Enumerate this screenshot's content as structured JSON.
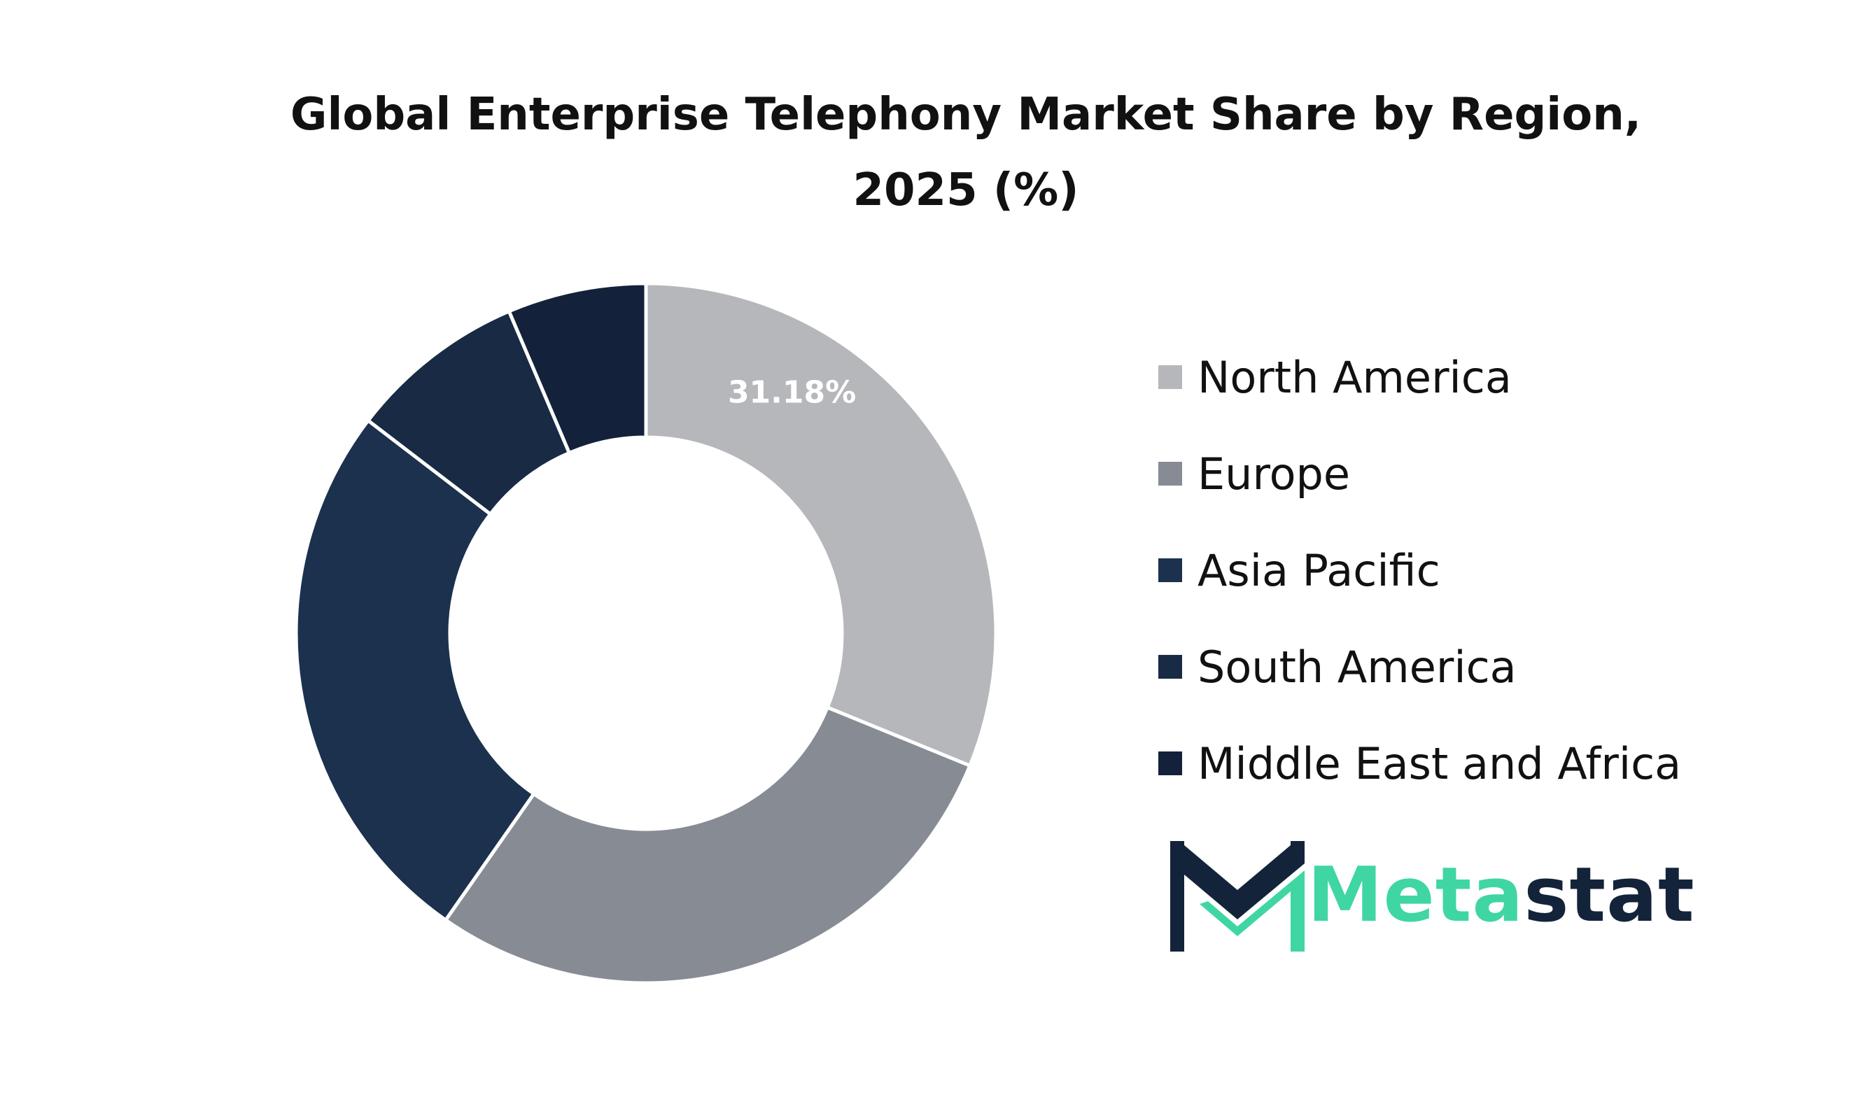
{
  "chart_data": {
    "type": "pie",
    "title": "Global Enterprise Telephony Market Share by Region,\n2025 (%)",
    "categories": [
      "North America",
      "Europe",
      "Asia Pacific",
      "South America",
      "Middle East and Africa"
    ],
    "values": [
      31.18,
      28.52,
      25.7,
      8.2,
      6.4
    ],
    "colors": [
      "#b6b7bb",
      "#878b94",
      "#1b314e",
      "#182a44",
      "#13223a"
    ],
    "data_labels": [
      "31.18%",
      "",
      "",
      "",
      ""
    ],
    "donut": true,
    "legend_position": "right"
  },
  "brand": {
    "name_part_a": "Meta",
    "name_part_b": "stat",
    "accent_color": "#3fd6a4",
    "dark_color": "#13233a"
  }
}
